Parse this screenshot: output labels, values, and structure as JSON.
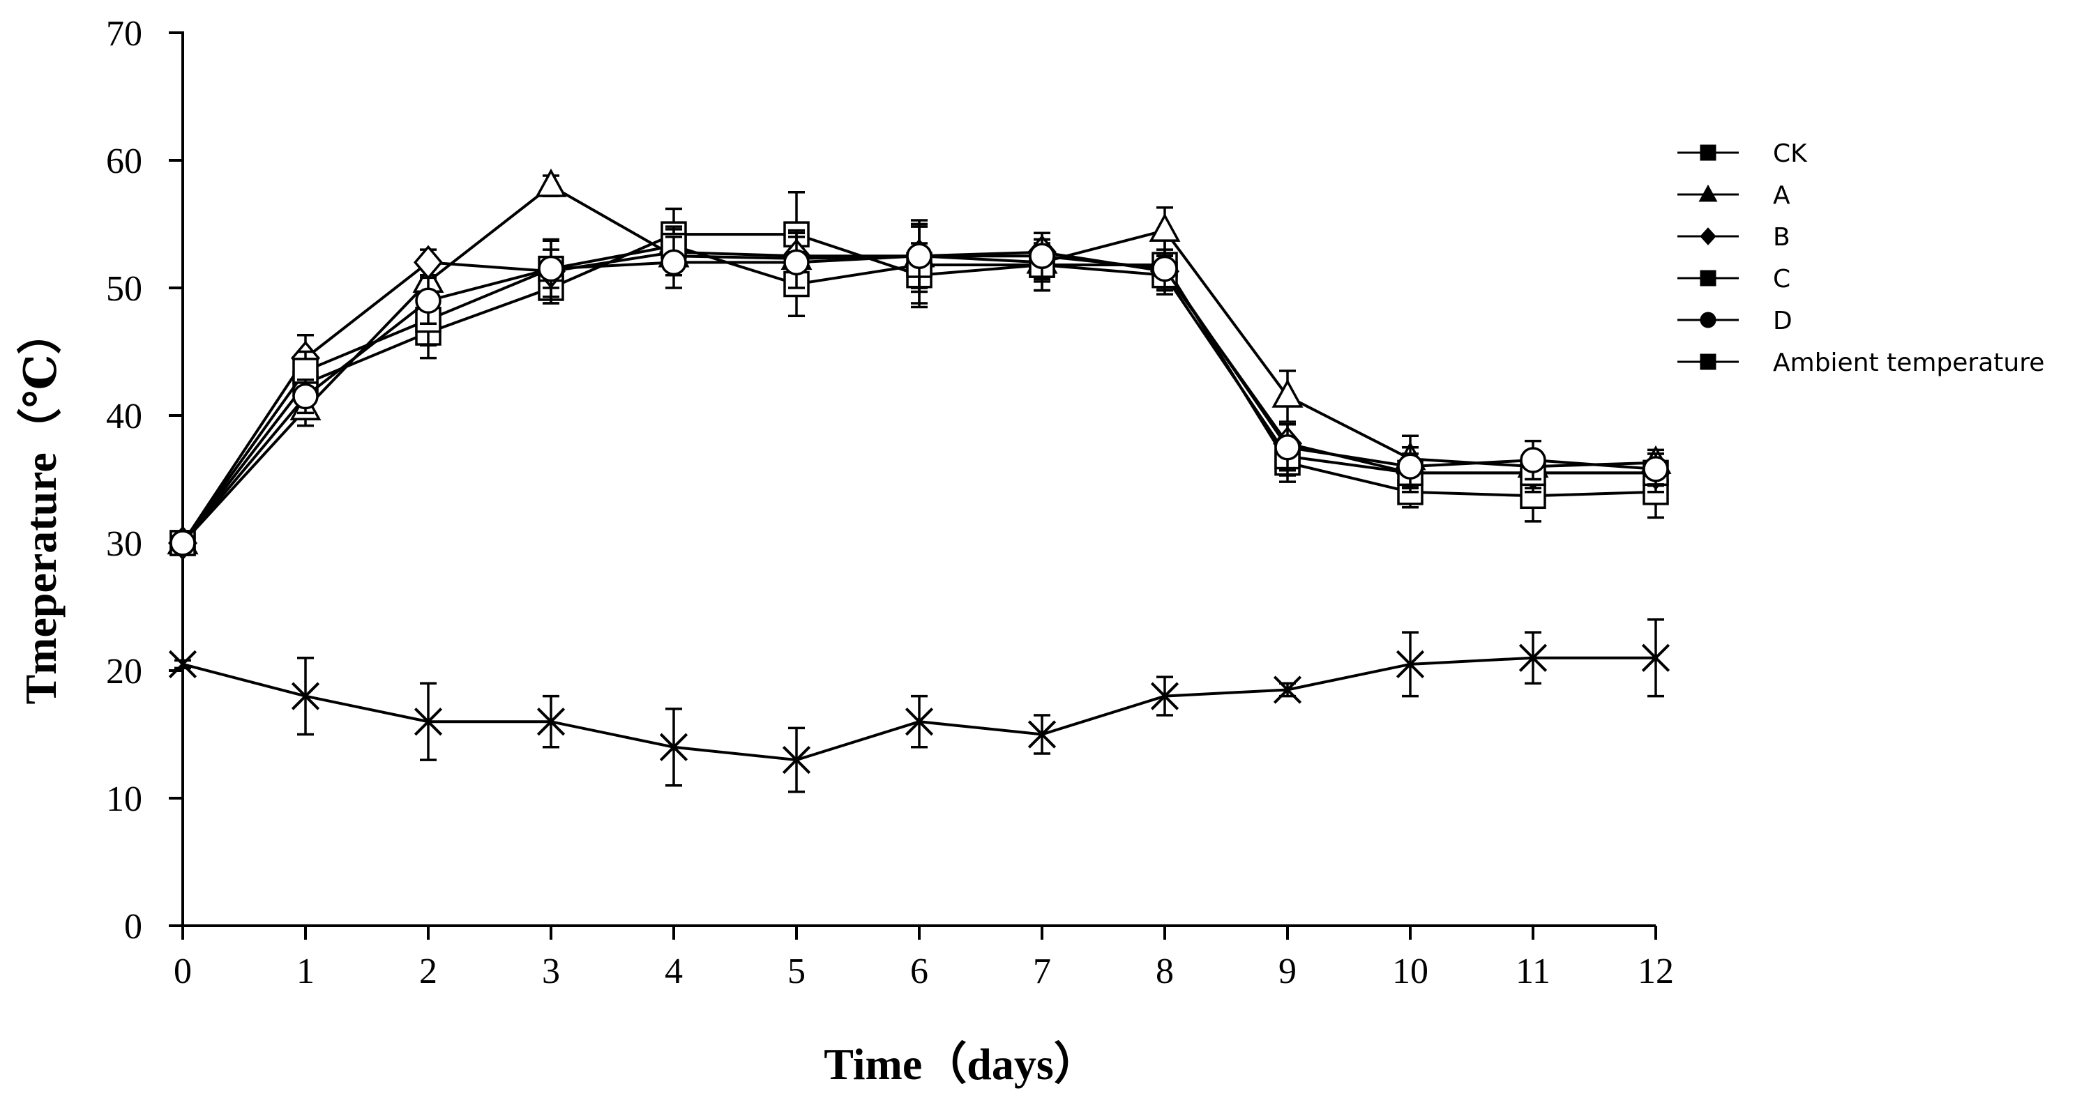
{
  "chart_data": {
    "type": "line",
    "title": "",
    "xlabel": "Time（days）",
    "ylabel": "Tmeperature（℃）",
    "xlim": [
      0,
      12
    ],
    "ylim": [
      0,
      70
    ],
    "x": [
      0,
      1,
      2,
      3,
      4,
      5,
      6,
      7,
      8,
      9,
      10,
      11,
      12
    ],
    "x_tick_labels": [
      "0",
      "1",
      "2",
      "3",
      "4",
      "5",
      "6",
      "7",
      "8",
      "9",
      "10",
      "11",
      "12"
    ],
    "y_tick_labels": [
      "0",
      "10",
      "20",
      "30",
      "40",
      "50",
      "60",
      "70"
    ],
    "y_ticks": [
      0,
      10,
      20,
      30,
      40,
      50,
      60,
      70
    ],
    "grid": false,
    "legend_position": "right",
    "series": [
      {
        "name": "CK",
        "marker": "square-open",
        "values": [
          30,
          42.5,
          46.5,
          50,
          54.2,
          54.2,
          51,
          51.8,
          51.8,
          36.3,
          34,
          33.7,
          34
        ],
        "errors": [
          0.3,
          1.5,
          2,
          1.2,
          2,
          3.3,
          2.5,
          2,
          2,
          1.5,
          1.2,
          2,
          2
        ]
      },
      {
        "name": "A",
        "marker": "triangle-open",
        "values": [
          30,
          40.5,
          50.5,
          58,
          52.5,
          52.3,
          52.5,
          52,
          54.5,
          41.5,
          36.6,
          36,
          36.3
        ],
        "errors": [
          0.3,
          1.3,
          1.5,
          0.8,
          1.5,
          2,
          2.5,
          1.5,
          1.8,
          2,
          1.8,
          1.2,
          1
        ]
      },
      {
        "name": "B",
        "marker": "diamond-open",
        "values": [
          30,
          44.5,
          52,
          51.3,
          52.8,
          52.5,
          52.5,
          52.8,
          51.3,
          37.8,
          35.5,
          35.5,
          35.5
        ],
        "errors": [
          0.3,
          1.8,
          1,
          2.5,
          1.8,
          2,
          2.8,
          1.5,
          1.2,
          1.5,
          1.2,
          1.2,
          1
        ]
      },
      {
        "name": "C",
        "marker": "square-open",
        "values": [
          30,
          43.5,
          47.5,
          51.5,
          53.3,
          50.3,
          51.8,
          51.8,
          51,
          36.8,
          35.5,
          35.5,
          35.5
        ],
        "errors": [
          0.3,
          1.5,
          2,
          2.2,
          1.5,
          2.5,
          3,
          2,
          1.5,
          1.5,
          1.5,
          1.5,
          1.5
        ]
      },
      {
        "name": "D",
        "marker": "circle-open",
        "values": [
          30,
          41.5,
          49,
          51.5,
          52,
          52,
          52.5,
          52.5,
          51.5,
          37.5,
          36,
          36.5,
          35.8
        ],
        "errors": [
          0.3,
          1.3,
          1.8,
          1.5,
          2,
          2,
          2.5,
          1.8,
          1.5,
          1.8,
          1.5,
          1.5,
          1.2
        ]
      },
      {
        "name": "Ambient temperature",
        "marker": "x",
        "values": [
          20.5,
          18,
          16,
          16,
          14,
          13,
          16,
          15,
          18,
          18.5,
          20.5,
          21,
          21
        ],
        "errors": [
          0.3,
          3,
          3,
          2,
          3,
          2.5,
          2,
          1.5,
          1.5,
          0.5,
          2.5,
          2,
          3
        ]
      }
    ]
  }
}
